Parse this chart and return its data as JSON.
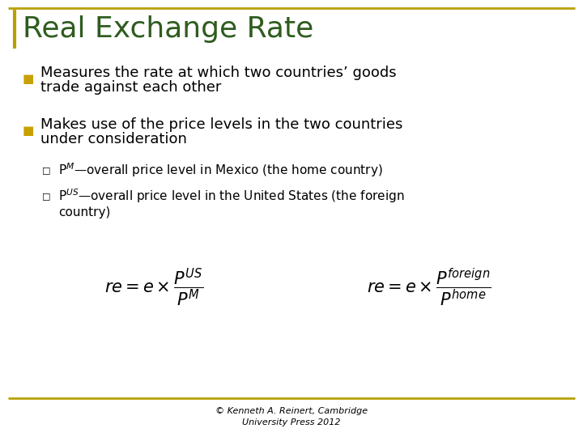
{
  "title": "Real Exchange Rate",
  "title_color": "#2E5C1E",
  "title_fontsize": 26,
  "background_color": "#FFFFFF",
  "border_top_color": "#B8A000",
  "border_bottom_color": "#B8A000",
  "bullet_color": "#C8A000",
  "bullet1_line1": "Measures the rate at which two countries’ goods",
  "bullet1_line2": "trade against each other",
  "bullet2_line1": "Makes use of the price levels in the two countries",
  "bullet2_line2": "under consideration",
  "sub1": "P$^{M}$—overall price level in Mexico (the home country)",
  "sub2_line1": "P$^{US}$—overall price level in the United States (the foreign",
  "sub2_line2": "country)",
  "formula1": "$re = e\\times\\dfrac{P^{US}}{P^{M}}$",
  "formula2": "$re = e\\times\\dfrac{P^{foreign}}{P^{home}}$",
  "footer": "© Kenneth A. Reinert, Cambridge\nUniversity Press 2012",
  "footer_fontsize": 8,
  "text_color": "#000000",
  "title_left_bar_color": "#B8A000"
}
